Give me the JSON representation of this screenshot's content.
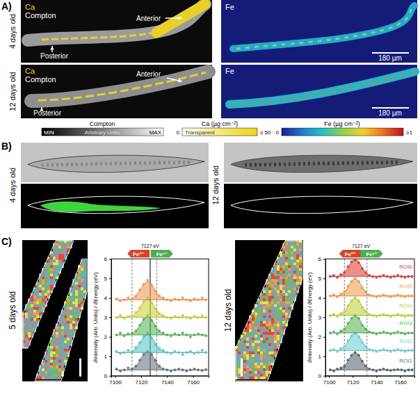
{
  "panels": {
    "A": {
      "label": "A)",
      "rows": [
        {
          "label": "4 days old",
          "ca_image": {
            "element": "Ca",
            "contrast": "Compton",
            "anterior": "Anterior",
            "posterior": "Posterior"
          },
          "fe_image": {
            "element": "Fe",
            "scale_bar": "180 µm"
          }
        },
        {
          "label": "12 days old",
          "ca_image": {
            "element": "Ca",
            "contrast": "Compton",
            "anterior": "Anterior",
            "posterior": "Posterior"
          },
          "fe_image": {
            "element": "Fe",
            "scale_bar": "180 µm"
          }
        }
      ],
      "colorbars": [
        {
          "title": "Compton",
          "min": "MIN",
          "middle": "Arbitrary Units",
          "max": "MAX"
        },
        {
          "title": "Ca (µg cm⁻²)",
          "min": "0",
          "middle": "Transparent",
          "max": "≥ 50"
        },
        {
          "title": "Fe (µg cm⁻²)",
          "min": "0",
          "max": "≥1"
        }
      ]
    },
    "B": {
      "label": "B)",
      "images": [
        {
          "label": "4 days old"
        },
        {
          "label": "12 days old"
        }
      ]
    },
    "C": {
      "label": "C)",
      "maps": [
        {
          "label": "5 days old"
        },
        {
          "label": "12 days old"
        }
      ]
    }
  },
  "chart_data": [
    {
      "type": "scatter",
      "y_label": "∂Intensity (Arb. Units) / ∂Energy (eV)",
      "x": [
        7101,
        7104,
        7107,
        7110,
        7113,
        7116,
        7119,
        7122,
        7125,
        7128,
        7131,
        7134,
        7137,
        7140,
        7143,
        7146,
        7149,
        7152,
        7155,
        7158,
        7161,
        7164,
        7167,
        7170
      ],
      "xlim": [
        7097,
        7172
      ],
      "xticks": [
        7100,
        7120,
        7140,
        7160
      ],
      "ylim": [
        0,
        6
      ],
      "yticks": [
        0,
        1,
        2,
        3,
        4,
        5,
        6
      ],
      "vlines": [
        {
          "value": 7113,
          "line_style": "dashed"
        },
        {
          "value": 7132,
          "line_style": "dashed"
        },
        {
          "value": 7127,
          "line_style": "solid"
        }
      ],
      "annotations": [
        {
          "text": "7127 eV",
          "x": 7127
        },
        {
          "text": "Fe²⁺",
          "x": 7118,
          "color": "#d9452b"
        },
        {
          "text": "Fe³⁺",
          "x": 7136,
          "color": "#4caf50"
        }
      ],
      "series": [
        {
          "color": "#6b7880",
          "baseline": 0.3,
          "values": [
            0.35,
            0.25,
            0.3,
            0.4,
            0.35,
            0.5,
            0.8,
            1.1,
            1.25,
            1.1,
            0.8,
            0.5,
            0.35,
            0.3,
            0.25,
            0.3,
            0.35,
            0.3,
            0.25,
            0.3,
            0.35,
            0.3,
            0.28,
            0.32
          ],
          "fit": [
            0.3,
            0.3,
            0.3,
            0.3,
            0.35,
            0.49,
            0.78,
            1.11,
            1.25,
            1.11,
            0.78,
            0.49,
            0.35,
            0.3,
            0.3,
            0.3,
            0.3,
            0.3,
            0.3,
            0.3,
            0.3,
            0.3,
            0.3,
            0.3
          ]
        },
        {
          "color": "#5cc6cc",
          "baseline": 1.2,
          "values": [
            1.25,
            1.15,
            1.2,
            1.3,
            1.2,
            1.45,
            1.7,
            2.0,
            2.2,
            1.95,
            1.6,
            1.4,
            1.3,
            1.2,
            1.15,
            1.25,
            1.2,
            1.1,
            1.2,
            1.25,
            1.15,
            1.2,
            1.3,
            1.2
          ],
          "fit": [
            1.2,
            1.2,
            1.2,
            1.2,
            1.25,
            1.39,
            1.68,
            2.01,
            2.15,
            2.01,
            1.68,
            1.39,
            1.25,
            1.2,
            1.2,
            1.2,
            1.2,
            1.2,
            1.2,
            1.2,
            1.2,
            1.2,
            1.2,
            1.2
          ]
        },
        {
          "color": "#5cb85c",
          "baseline": 2.1,
          "values": [
            2.1,
            2.2,
            2.05,
            2.15,
            2.2,
            2.3,
            2.6,
            2.9,
            3.1,
            2.85,
            2.55,
            2.3,
            2.2,
            2.1,
            2.05,
            2.15,
            2.1,
            2.2,
            2.1,
            2.0,
            2.1,
            2.15,
            2.1,
            2.05
          ],
          "fit": [
            2.1,
            2.1,
            2.1,
            2.1,
            2.15,
            2.29,
            2.58,
            2.91,
            3.05,
            2.91,
            2.58,
            2.29,
            2.15,
            2.1,
            2.1,
            2.1,
            2.1,
            2.1,
            2.1,
            2.1,
            2.1,
            2.1,
            2.1,
            2.1
          ]
        },
        {
          "color": "#cfd23c",
          "baseline": 3.0,
          "values": [
            3.0,
            3.1,
            2.95,
            3.05,
            3.1,
            3.25,
            3.5,
            3.8,
            4.0,
            3.75,
            3.45,
            3.2,
            3.1,
            3.0,
            2.95,
            3.05,
            3.0,
            3.1,
            3.0,
            2.95,
            3.05,
            3.0,
            3.1,
            3.0
          ],
          "fit": [
            3.0,
            3.0,
            3.0,
            3.0,
            3.05,
            3.19,
            3.48,
            3.81,
            3.95,
            3.81,
            3.48,
            3.19,
            3.05,
            3.0,
            3.0,
            3.0,
            3.0,
            3.0,
            3.0,
            3.0,
            3.0,
            3.0,
            3.0,
            3.0
          ]
        },
        {
          "color": "#f29b5a",
          "baseline": 3.9,
          "values": [
            3.95,
            3.85,
            3.9,
            4.0,
            3.95,
            4.1,
            4.4,
            4.7,
            4.9,
            4.65,
            4.35,
            4.1,
            4.0,
            3.9,
            3.85,
            3.95,
            3.9,
            4.0,
            3.9,
            3.85,
            3.95,
            3.9,
            4.0,
            3.9
          ],
          "fit": [
            3.9,
            3.9,
            3.9,
            3.9,
            3.95,
            4.09,
            4.38,
            4.71,
            4.85,
            4.71,
            4.38,
            4.09,
            3.95,
            3.9,
            3.9,
            3.9,
            3.9,
            3.9,
            3.9,
            3.9,
            3.9,
            3.9,
            3.9,
            3.9
          ]
        }
      ]
    },
    {
      "type": "scatter",
      "y_label": "∂Intensity (Arb. Units) / ∂Energy (eV)",
      "x": [
        7101,
        7104,
        7107,
        7110,
        7113,
        7116,
        7119,
        7122,
        7125,
        7128,
        7131,
        7134,
        7137,
        7140,
        7143,
        7146,
        7149,
        7152,
        7155,
        7158,
        7161,
        7164,
        7167,
        7170
      ],
      "xlim": [
        7097,
        7172
      ],
      "xticks": [
        7100,
        7120,
        7140,
        7160
      ],
      "ylim": [
        0,
        6
      ],
      "yticks": [
        0,
        1,
        2,
        3,
        4,
        5,
        6
      ],
      "vlines": [
        {
          "value": 7113,
          "line_style": "dashed"
        },
        {
          "value": 7132,
          "line_style": "dashed"
        }
      ],
      "annotations": [
        {
          "text": "7127 eV",
          "x": 7127
        },
        {
          "text": "Fe²⁺",
          "x": 7118,
          "color": "#d9452b"
        },
        {
          "text": "Fe³⁺",
          "x": 7136,
          "color": "#4caf50"
        }
      ],
      "series": [
        {
          "name": "ROI1",
          "color": "#5f6b73",
          "baseline": 0.3,
          "values": [
            0.3,
            0.25,
            0.35,
            0.4,
            0.5,
            0.8,
            1.05,
            1.2,
            1.05,
            0.75,
            0.5,
            0.35,
            0.3,
            0.25,
            0.3,
            0.35,
            0.3,
            0.28,
            0.3,
            0.32,
            0.3,
            0.25,
            0.3,
            0.3
          ],
          "fit": [
            0.3,
            0.3,
            0.3,
            0.35,
            0.48,
            0.75,
            1.07,
            1.2,
            1.07,
            0.75,
            0.48,
            0.35,
            0.3,
            0.3,
            0.3,
            0.3,
            0.3,
            0.3,
            0.3,
            0.3,
            0.3,
            0.3,
            0.3,
            0.3
          ]
        },
        {
          "name": "ROI2",
          "color": "#6fd0d6",
          "baseline": 1.3,
          "values": [
            1.3,
            1.35,
            1.25,
            1.4,
            1.5,
            1.8,
            2.05,
            2.2,
            2.0,
            1.7,
            1.5,
            1.35,
            1.3,
            1.25,
            1.3,
            1.35,
            1.3,
            1.25,
            1.3,
            1.35,
            1.3,
            1.25,
            1.3,
            1.3
          ],
          "fit": [
            1.3,
            1.3,
            1.3,
            1.35,
            1.48,
            1.75,
            2.07,
            2.2,
            2.07,
            1.75,
            1.48,
            1.35,
            1.3,
            1.3,
            1.3,
            1.3,
            1.3,
            1.3,
            1.3,
            1.3,
            1.3,
            1.3,
            1.3,
            1.3
          ]
        },
        {
          "name": "ROI3",
          "color": "#5cb85c",
          "baseline": 2.2,
          "values": [
            2.2,
            2.25,
            2.15,
            2.3,
            2.4,
            2.7,
            2.95,
            3.1,
            2.95,
            2.6,
            2.4,
            2.25,
            2.2,
            2.15,
            2.2,
            2.25,
            2.2,
            2.15,
            2.2,
            2.25,
            2.2,
            2.15,
            2.2,
            2.2
          ],
          "fit": [
            2.2,
            2.2,
            2.2,
            2.25,
            2.38,
            2.65,
            2.97,
            3.1,
            2.97,
            2.65,
            2.38,
            2.25,
            2.2,
            2.2,
            2.2,
            2.2,
            2.2,
            2.2,
            2.2,
            2.2,
            2.2,
            2.2,
            2.2,
            2.2
          ]
        },
        {
          "name": "ROI4",
          "color": "#bfd43e",
          "baseline": 3.1,
          "values": [
            3.1,
            3.15,
            3.05,
            3.2,
            3.3,
            3.6,
            3.85,
            4.0,
            3.85,
            3.5,
            3.3,
            3.15,
            3.1,
            3.05,
            3.1,
            3.15,
            3.1,
            3.05,
            3.1,
            3.15,
            3.1,
            3.05,
            3.1,
            3.1
          ],
          "fit": [
            3.1,
            3.1,
            3.1,
            3.15,
            3.28,
            3.55,
            3.87,
            4.0,
            3.87,
            3.55,
            3.28,
            3.15,
            3.1,
            3.1,
            3.1,
            3.1,
            3.1,
            3.1,
            3.1,
            3.1,
            3.1,
            3.1,
            3.1,
            3.1
          ]
        },
        {
          "name": "ROI5",
          "color": "#f0a050",
          "baseline": 4.1,
          "values": [
            4.1,
            4.15,
            4.05,
            4.2,
            4.3,
            4.6,
            4.85,
            5.0,
            4.85,
            4.5,
            4.3,
            4.15,
            4.1,
            4.05,
            4.1,
            4.15,
            4.1,
            4.05,
            4.1,
            4.15,
            4.1,
            4.05,
            4.1,
            4.1
          ],
          "fit": [
            4.1,
            4.1,
            4.1,
            4.15,
            4.28,
            4.55,
            4.87,
            5.0,
            4.87,
            4.55,
            4.28,
            4.15,
            4.1,
            4.1,
            4.1,
            4.1,
            4.1,
            4.1,
            4.1,
            4.1,
            4.1,
            4.1,
            4.1,
            4.1
          ]
        },
        {
          "name": "ROI6",
          "color": "#e0453a",
          "baseline": 5.1,
          "values": [
            5.1,
            5.15,
            5.05,
            5.2,
            5.3,
            5.6,
            5.85,
            5.95,
            5.8,
            5.5,
            5.3,
            5.15,
            5.1,
            5.05,
            5.1,
            5.15,
            5.1,
            5.05,
            5.1,
            5.15,
            5.1,
            5.05,
            5.1,
            5.1
          ],
          "fit": [
            5.1,
            5.1,
            5.1,
            5.15,
            5.28,
            5.55,
            5.87,
            6.0,
            5.87,
            5.55,
            5.28,
            5.15,
            5.1,
            5.1,
            5.1,
            5.1,
            5.1,
            5.1,
            5.1,
            5.1,
            5.1,
            5.1,
            5.1,
            5.1
          ]
        }
      ]
    }
  ]
}
